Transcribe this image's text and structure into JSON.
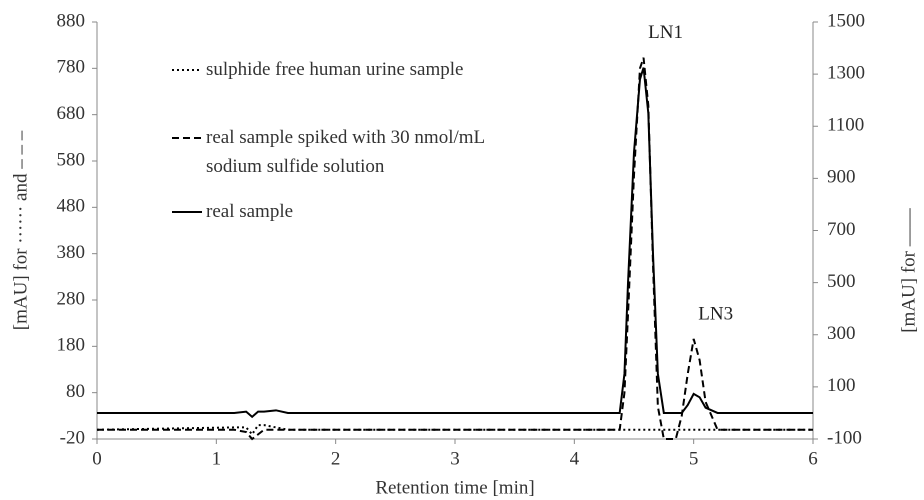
{
  "chart_data": {
    "type": "line",
    "xlabel": "Retention time [min]",
    "ylabel": "[mAU] for ······ and – – –",
    "y2label": "[mAU] for ——",
    "annotations": [
      {
        "text": "LN1",
        "x": 4.58,
        "y": 803
      },
      {
        "text": "LN3",
        "x": 5.0,
        "y": 196
      }
    ],
    "x": [
      0,
      1.15,
      1.25,
      1.3,
      1.35,
      1.4,
      1.5,
      1.6,
      4.38,
      4.42,
      4.45,
      4.5,
      4.55,
      4.58,
      4.62,
      4.66,
      4.7,
      4.75,
      4.85,
      4.9,
      4.95,
      5.0,
      5.05,
      5.1,
      5.2,
      5.3,
      6
    ],
    "series": [
      {
        "name": "sulphide free human urine sample",
        "color": "#000000",
        "style": "dotted",
        "axis": "y",
        "values": [
          0,
          5,
          5,
          -10,
          10,
          10,
          5,
          0,
          0,
          0,
          0,
          0,
          0,
          0,
          0,
          0,
          0,
          0,
          0,
          0,
          0,
          0,
          0,
          0,
          0,
          0,
          0
        ]
      },
      {
        "name": "real sample spiked with 30 nmol/mL sodium sulfide solution",
        "color": "#000000",
        "style": "dashed",
        "axis": "y",
        "values": [
          0,
          0,
          -5,
          -20,
          -10,
          0,
          0,
          0,
          0,
          80,
          250,
          550,
          780,
          803,
          700,
          350,
          50,
          -20,
          -20,
          30,
          120,
          196,
          150,
          60,
          0,
          0,
          0
        ]
      },
      {
        "name": "real sample",
        "color": "#000000",
        "style": "solid",
        "axis": "y2",
        "values": [
          0,
          0,
          5,
          -15,
          5,
          5,
          10,
          0,
          0,
          150,
          500,
          1000,
          1280,
          1325,
          1150,
          600,
          150,
          0,
          0,
          0,
          30,
          73,
          60,
          20,
          0,
          0,
          0
        ]
      }
    ],
    "xlim": [
      0,
      6
    ],
    "xticks": [
      0,
      1,
      2,
      3,
      4,
      5,
      6
    ],
    "ylim": [
      -20,
      880
    ],
    "yticks": [
      -20,
      80,
      180,
      280,
      380,
      480,
      580,
      680,
      780,
      880
    ],
    "y2lim": [
      -100,
      1500
    ],
    "y2ticks": [
      -100,
      100,
      300,
      500,
      700,
      900,
      1100,
      1300,
      1500
    ]
  }
}
